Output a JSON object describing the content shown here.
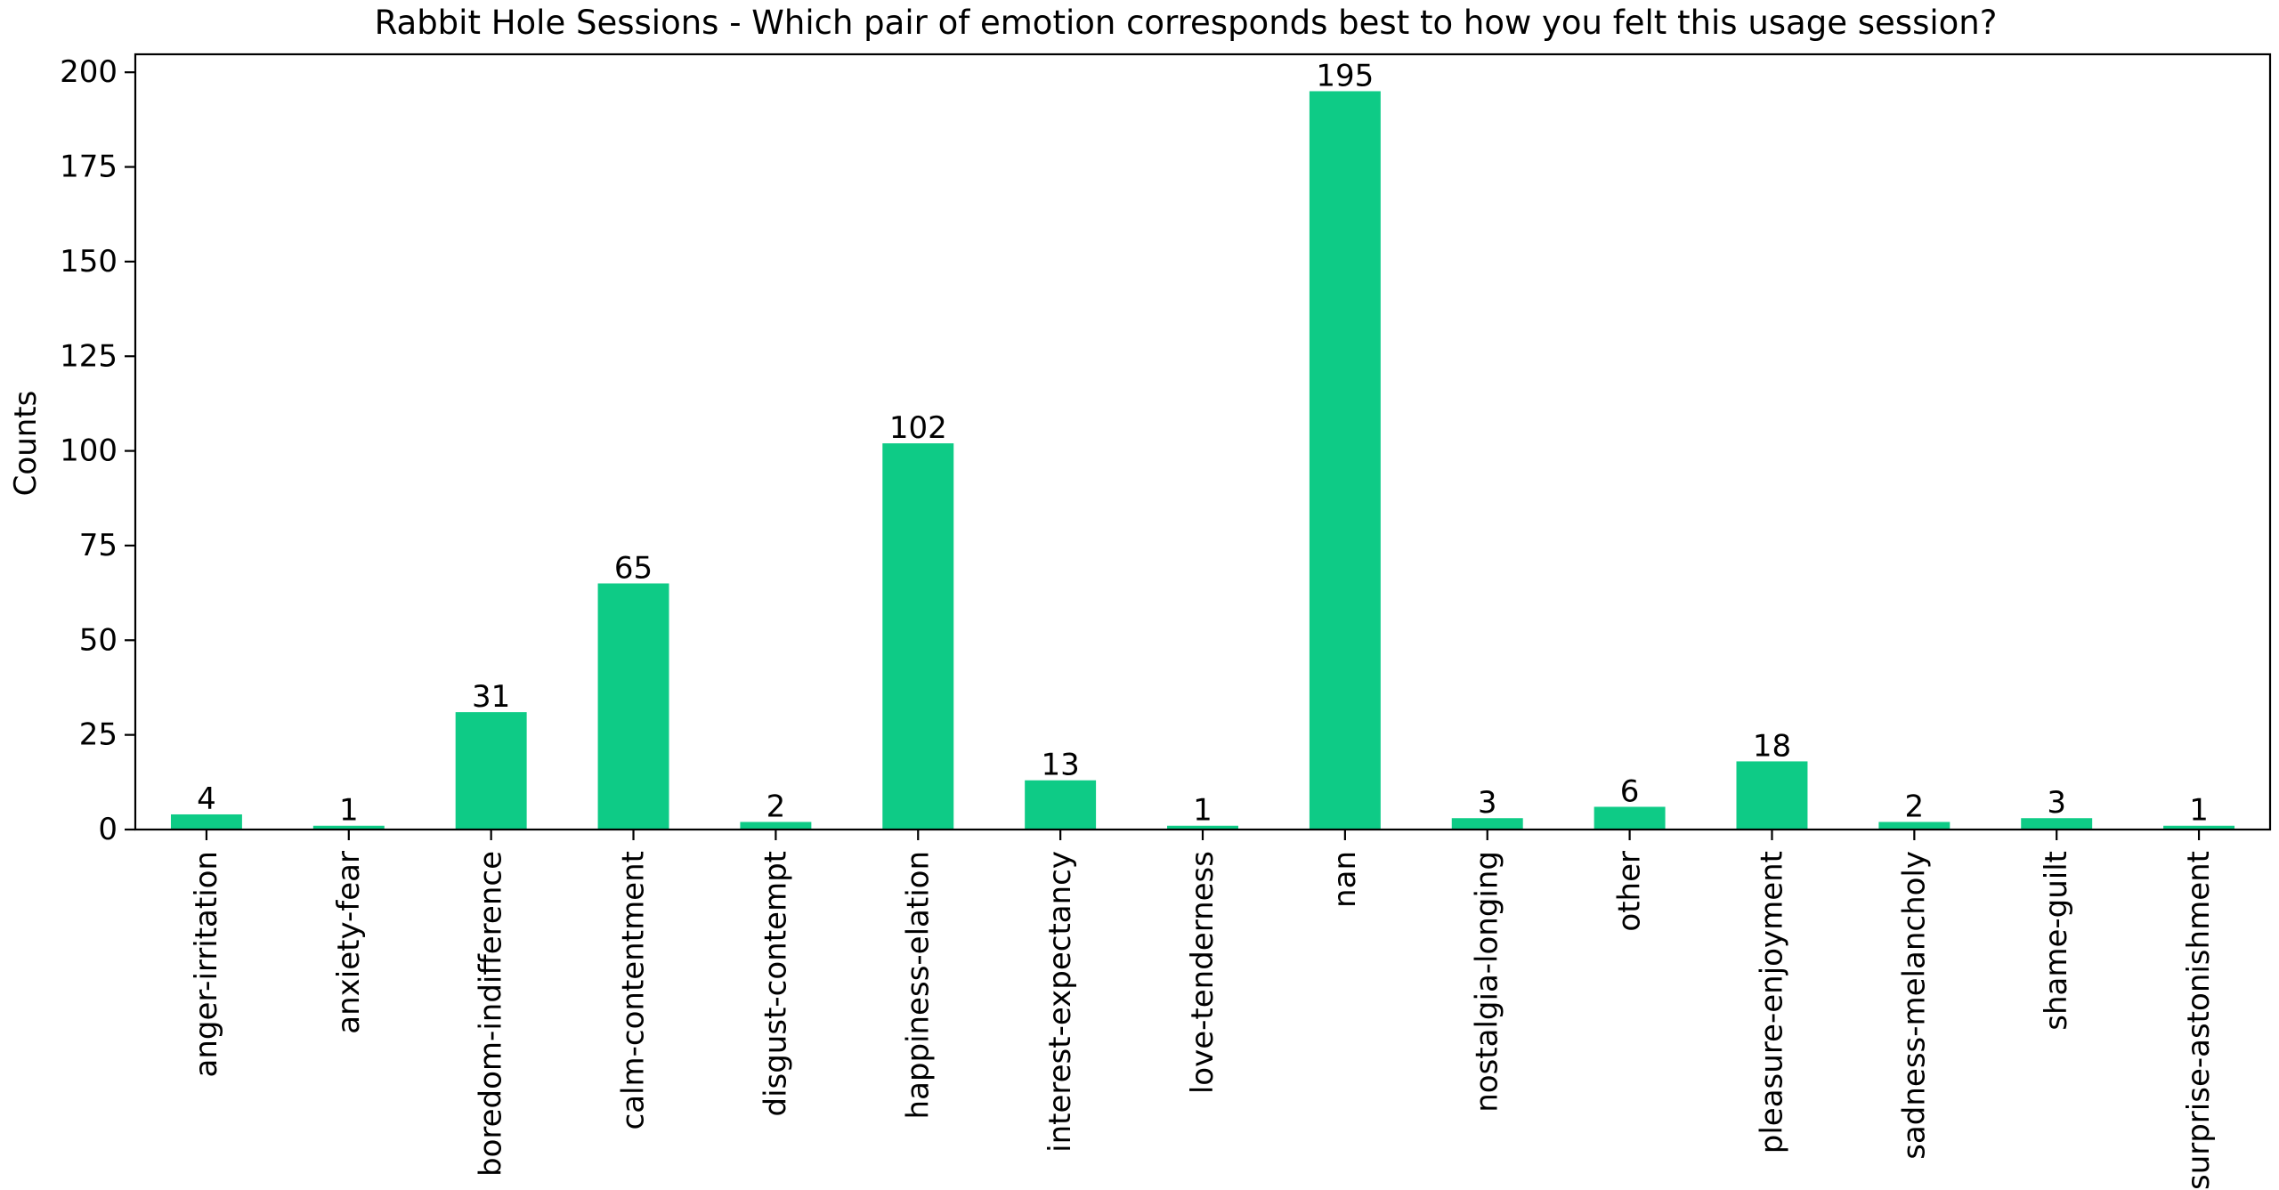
{
  "chart_data": {
    "type": "bar",
    "title": "Rabbit Hole Sessions - Which pair of emotion corresponds best to how you felt this usage session?",
    "xlabel": "",
    "ylabel": "Counts",
    "categories": [
      "anger-irritation",
      "anxiety-fear",
      "boredom-indifference",
      "calm-contentment",
      "disgust-contempt",
      "happiness-elation",
      "interest-expectancy",
      "love-tenderness",
      "nan",
      "nostalgia-longing",
      "other",
      "pleasure-enjoyment",
      "sadness-melancholy",
      "shame-guilt",
      "surprise-astonishment"
    ],
    "values": [
      4,
      1,
      31,
      65,
      2,
      102,
      13,
      1,
      195,
      3,
      6,
      18,
      2,
      3,
      1
    ],
    "ylim": [
      0,
      204.75
    ],
    "yticks": [
      0,
      25,
      50,
      75,
      100,
      125,
      150,
      175,
      200
    ],
    "bar_color": "#0ecb86",
    "grid": false,
    "legend": "none",
    "data_labels": true
  }
}
